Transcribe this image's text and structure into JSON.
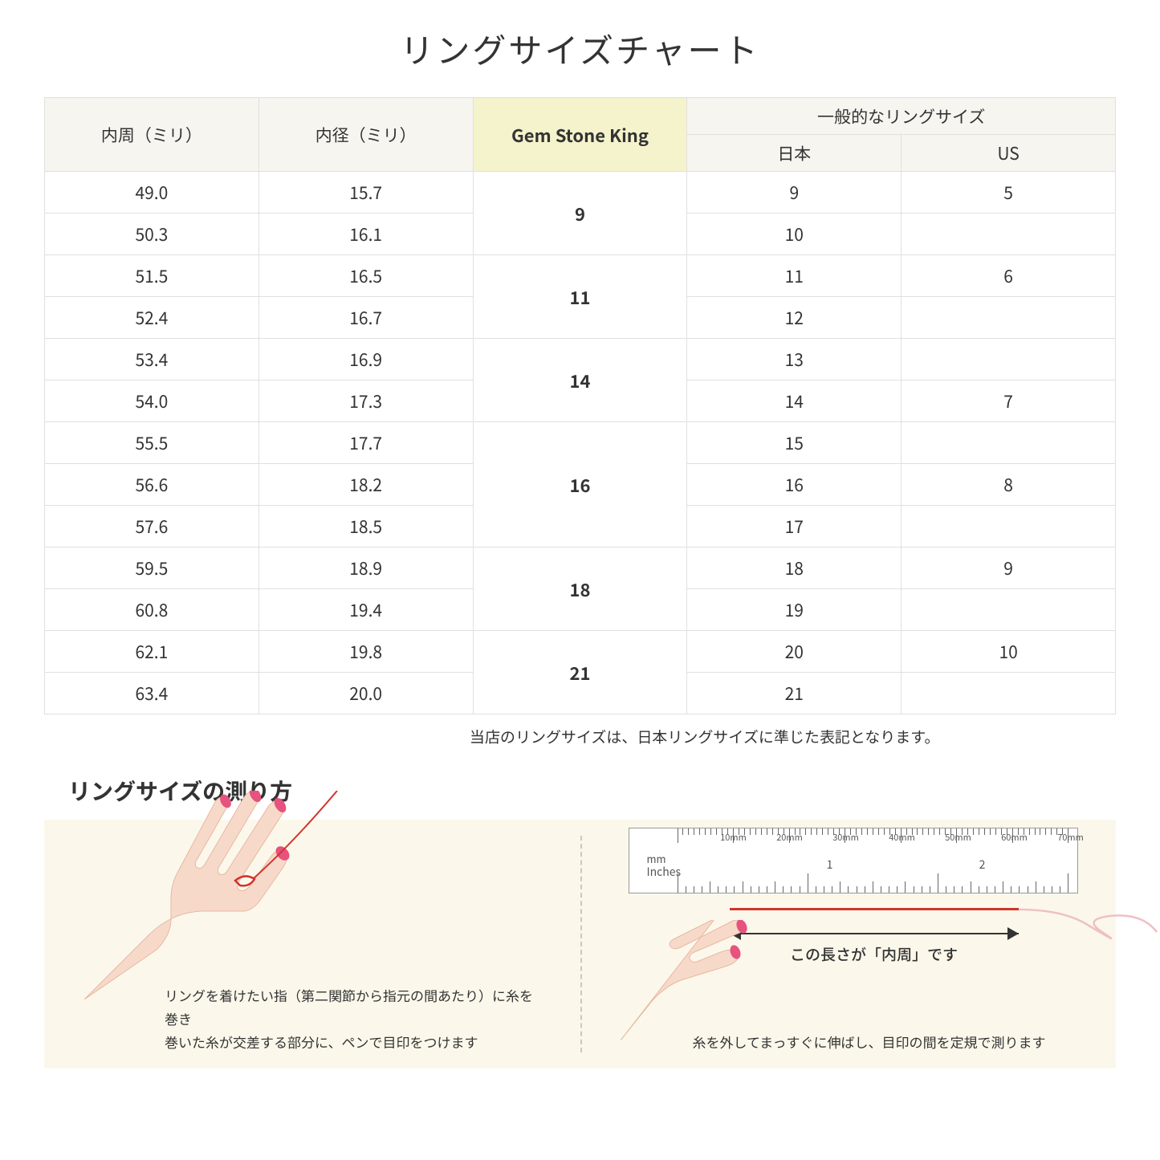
{
  "title": "リングサイズチャート",
  "table": {
    "headers": {
      "circumference": "内周（ミリ）",
      "diameter": "内径（ミリ）",
      "gsk": "Gem Stone King",
      "general_group": "一般的なリングサイズ",
      "japan": "日本",
      "us": "US"
    },
    "rows": [
      {
        "circ": "49.0",
        "dia": "15.7",
        "jp": "9",
        "us": "5"
      },
      {
        "circ": "50.3",
        "dia": "16.1",
        "jp": "10",
        "us": ""
      },
      {
        "circ": "51.5",
        "dia": "16.5",
        "jp": "11",
        "us": "6"
      },
      {
        "circ": "52.4",
        "dia": "16.7",
        "jp": "12",
        "us": ""
      },
      {
        "circ": "53.4",
        "dia": "16.9",
        "jp": "13",
        "us": ""
      },
      {
        "circ": "54.0",
        "dia": "17.3",
        "jp": "14",
        "us": "7"
      },
      {
        "circ": "55.5",
        "dia": "17.7",
        "jp": "15",
        "us": ""
      },
      {
        "circ": "56.6",
        "dia": "18.2",
        "jp": "16",
        "us": "8"
      },
      {
        "circ": "57.6",
        "dia": "18.5",
        "jp": "17",
        "us": ""
      },
      {
        "circ": "59.5",
        "dia": "18.9",
        "jp": "18",
        "us": "9"
      },
      {
        "circ": "60.8",
        "dia": "19.4",
        "jp": "19",
        "us": ""
      },
      {
        "circ": "62.1",
        "dia": "19.8",
        "jp": "20",
        "us": "10"
      },
      {
        "circ": "63.4",
        "dia": "20.0",
        "jp": "21",
        "us": ""
      }
    ],
    "gsk_groups": [
      {
        "value": "9",
        "span": 2
      },
      {
        "value": "11",
        "span": 2
      },
      {
        "value": "14",
        "span": 2
      },
      {
        "value": "16",
        "span": 3
      },
      {
        "value": "18",
        "span": 2
      },
      {
        "value": "21",
        "span": 2
      }
    ],
    "colors": {
      "header_bg": "#f7f5f0",
      "highlight_bg": "#f5f3cc",
      "border": "#e0e0e0"
    }
  },
  "note": "当店のリングサイズは、日本リングサイズに準じた表記となります。",
  "howto": {
    "title": "リングサイズの測り方",
    "panel_bg": "#fbf8eb",
    "left_caption_line1": "リングを着けたい指（第二関節から指元の間あたり）に糸を巻き",
    "left_caption_line2": "巻いた糸が交差する部分に、ペンで目印をつけます",
    "right_caption": "糸を外してまっすぐに伸ばし、目印の間を定規で測ります",
    "measure_label": "この長さが「内周」です",
    "ruler": {
      "mm_label": "mm",
      "in_label": "Inches",
      "mm_marks": [
        "10mm",
        "20mm",
        "30mm",
        "40mm",
        "50mm",
        "60mm",
        "70mm"
      ],
      "in_marks": [
        "1",
        "2"
      ]
    },
    "thread_color": "#d0342c",
    "skin_color": "#f7d9ca",
    "nail_color": "#e7527f"
  }
}
